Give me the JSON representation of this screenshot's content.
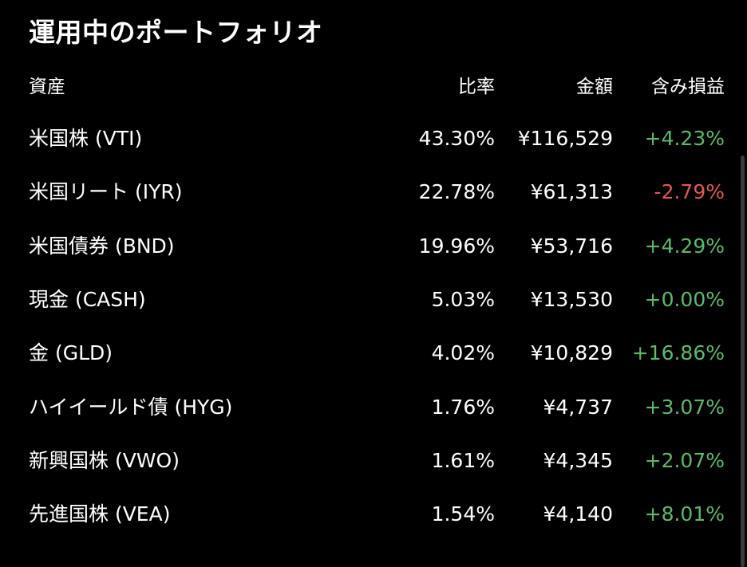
{
  "title": "運用中のポートフォリオ",
  "headers": {
    "asset": "資産",
    "ratio": "比率",
    "amount": "金額",
    "gain": "含み損益"
  },
  "colors": {
    "background": "#000000",
    "text": "#ffffff",
    "positive": "#5fb86c",
    "negative": "#dc5b56"
  },
  "rows": [
    {
      "name": "米国株 (VTI)",
      "ratio": "43.30%",
      "amount": "¥116,529",
      "gain": "+4.23%",
      "gain_sign": "positive"
    },
    {
      "name": "米国リート (IYR)",
      "ratio": "22.78%",
      "amount": "¥61,313",
      "gain": "-2.79%",
      "gain_sign": "negative"
    },
    {
      "name": "米国債券 (BND)",
      "ratio": "19.96%",
      "amount": "¥53,716",
      "gain": "+4.29%",
      "gain_sign": "positive"
    },
    {
      "name": "現金 (CASH)",
      "ratio": "5.03%",
      "amount": "¥13,530",
      "gain": "+0.00%",
      "gain_sign": "positive"
    },
    {
      "name": "金 (GLD)",
      "ratio": "4.02%",
      "amount": "¥10,829",
      "gain": "+16.86%",
      "gain_sign": "positive"
    },
    {
      "name": "ハイイールド債 (HYG)",
      "ratio": "1.76%",
      "amount": "¥4,737",
      "gain": "+3.07%",
      "gain_sign": "positive"
    },
    {
      "name": "新興国株 (VWO)",
      "ratio": "1.61%",
      "amount": "¥4,345",
      "gain": "+2.07%",
      "gain_sign": "positive"
    },
    {
      "name": "先進国株 (VEA)",
      "ratio": "1.54%",
      "amount": "¥4,140",
      "gain": "+8.01%",
      "gain_sign": "positive"
    }
  ]
}
